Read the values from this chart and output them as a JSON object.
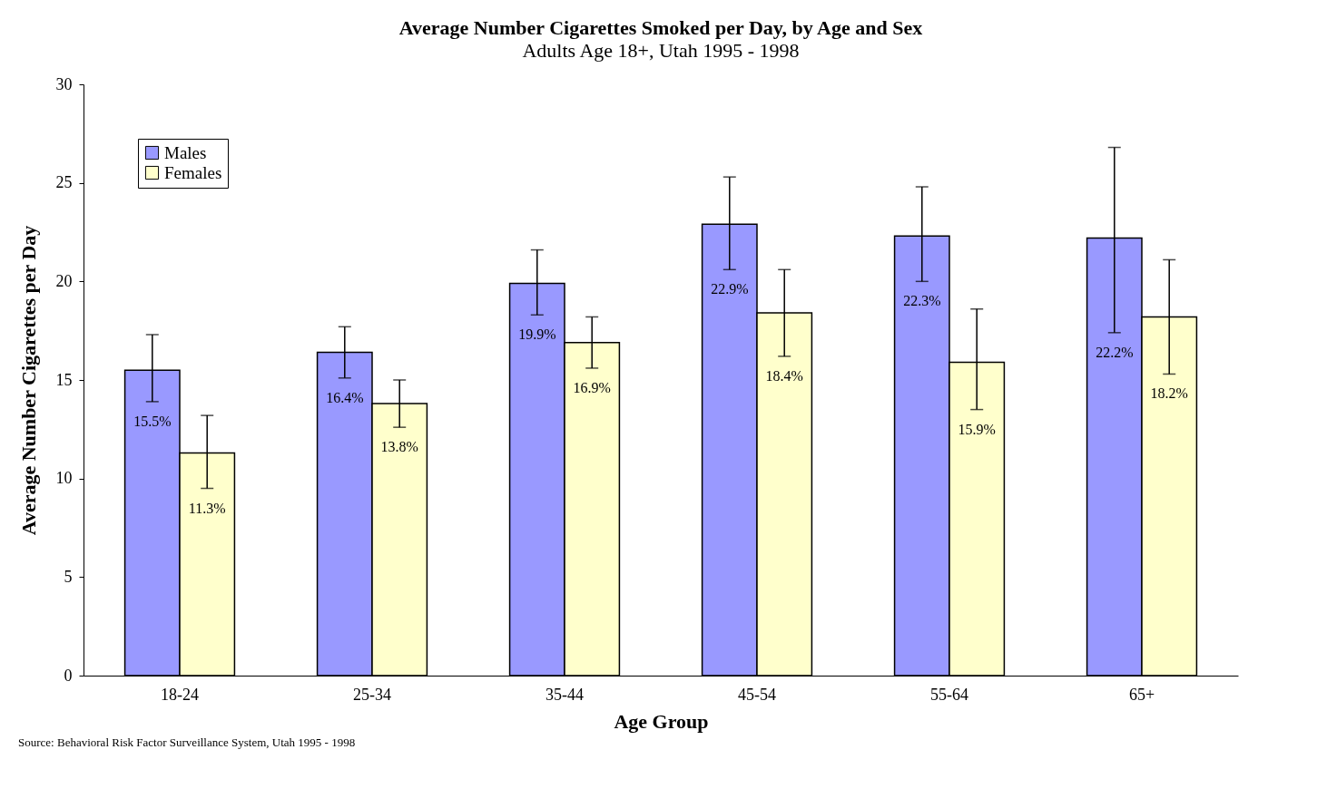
{
  "chart_data": {
    "type": "bar",
    "title": "Average Number Cigarettes Smoked per Day, by Age and Sex",
    "subtitle": "Adults Age 18+, Utah 1995 - 1998",
    "xlabel": "Age Group",
    "ylabel": "Average Number Cigarettes per Day",
    "categories": [
      "18-24",
      "25-34",
      "35-44",
      "45-54",
      "55-64",
      "65+"
    ],
    "series": [
      {
        "name": "Males",
        "color": "#9999ff",
        "values": [
          15.5,
          16.4,
          19.9,
          22.9,
          22.3,
          22.2
        ],
        "errors": [
          [
            13.9,
            17.3
          ],
          [
            15.1,
            17.7
          ],
          [
            18.3,
            21.6
          ],
          [
            20.6,
            25.3
          ],
          [
            20.0,
            24.8
          ],
          [
            17.4,
            26.8
          ]
        ],
        "value_labels": [
          "15.5%",
          "16.4%",
          "19.9%",
          "22.9%",
          "22.3%",
          "22.2%"
        ]
      },
      {
        "name": "Females",
        "color": "#ffffcc",
        "values": [
          11.3,
          13.8,
          16.9,
          18.4,
          15.9,
          18.2
        ],
        "errors": [
          [
            9.5,
            13.2
          ],
          [
            12.6,
            15.0
          ],
          [
            15.6,
            18.2
          ],
          [
            16.2,
            20.6
          ],
          [
            13.5,
            18.6
          ],
          [
            15.3,
            21.1
          ]
        ],
        "value_labels": [
          "11.3%",
          "13.8%",
          "16.9%",
          "18.4%",
          "15.9%",
          "18.2%"
        ]
      }
    ],
    "ylim": [
      0,
      30
    ],
    "yticks": [
      0,
      5,
      10,
      15,
      20,
      25,
      30
    ],
    "grid": false,
    "legend": "top left",
    "annotations": [
      "Source: Behavioral Risk Factor Surveillance System, Utah 1995 - 1998"
    ]
  }
}
